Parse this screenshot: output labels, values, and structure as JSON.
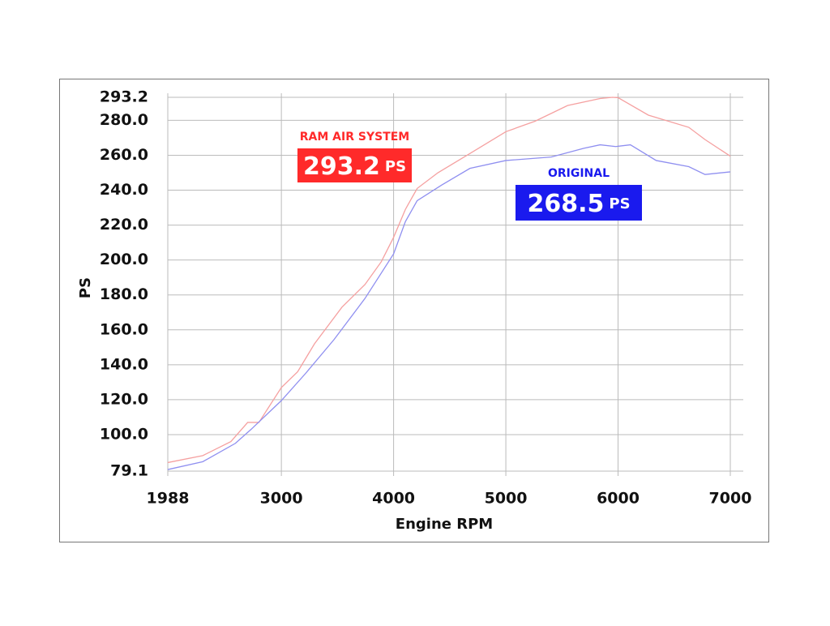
{
  "chart_data": {
    "type": "line",
    "xlabel": "Engine RPM",
    "ylabel": "PS",
    "xlim": [
      1988,
      7000
    ],
    "xticks": [
      1988,
      3000,
      4000,
      5000,
      6000,
      7000
    ],
    "ylim": [
      79.1,
      293.2
    ],
    "yticks": [
      79.1,
      {
        "value": 100,
        "label": "100.0"
      },
      {
        "value": 120,
        "label": "120.0"
      },
      {
        "value": 140,
        "label": "140.0"
      },
      {
        "value": 160,
        "label": "160.0"
      },
      {
        "value": 180,
        "label": "180.0"
      },
      {
        "value": 200,
        "label": "200.0"
      },
      {
        "value": 220,
        "label": "220.0"
      },
      {
        "value": 240,
        "label": "240.0"
      },
      {
        "value": 260,
        "label": "260.0"
      },
      {
        "value": 280,
        "label": "280.0"
      },
      293.2
    ],
    "grid": true,
    "series": [
      {
        "name": "RAM AIR SYSTEM",
        "color": "#ff2a2a",
        "line_color": "#f5a0a0",
        "peak": 293.2,
        "unit": "PS",
        "x": [
          1988,
          2300,
          2550,
          2700,
          2800,
          3000,
          3145,
          3295,
          3540,
          3745,
          3890,
          4000,
          4105,
          4210,
          4395,
          4680,
          5000,
          5260,
          5550,
          5840,
          5950,
          6000,
          6270,
          6630,
          6775,
          7000
        ],
        "values": [
          84,
          88,
          96,
          107,
          107,
          127,
          136,
          152,
          173,
          186,
          199,
          213,
          229,
          241,
          250,
          261,
          273.5,
          279.5,
          288.5,
          292.5,
          293.2,
          293,
          283,
          276,
          269,
          259.5
        ]
      },
      {
        "name": "ORIGINAL",
        "color": "#1a1aee",
        "line_color": "#8f8ff0",
        "peak": 268.5,
        "unit": "PS",
        "x": [
          1988,
          2300,
          2590,
          2730,
          3000,
          3215,
          3470,
          3745,
          4000,
          4105,
          4210,
          4430,
          4680,
          5000,
          5405,
          5695,
          5840,
          5980,
          6110,
          6340,
          6630,
          6775,
          7000
        ],
        "values": [
          80,
          84.5,
          95,
          103,
          119.5,
          135,
          154.5,
          178,
          203.5,
          222,
          234,
          243,
          252.5,
          257,
          259,
          264,
          266,
          265,
          266,
          257,
          253.5,
          249,
          250.5
        ]
      }
    ]
  }
}
